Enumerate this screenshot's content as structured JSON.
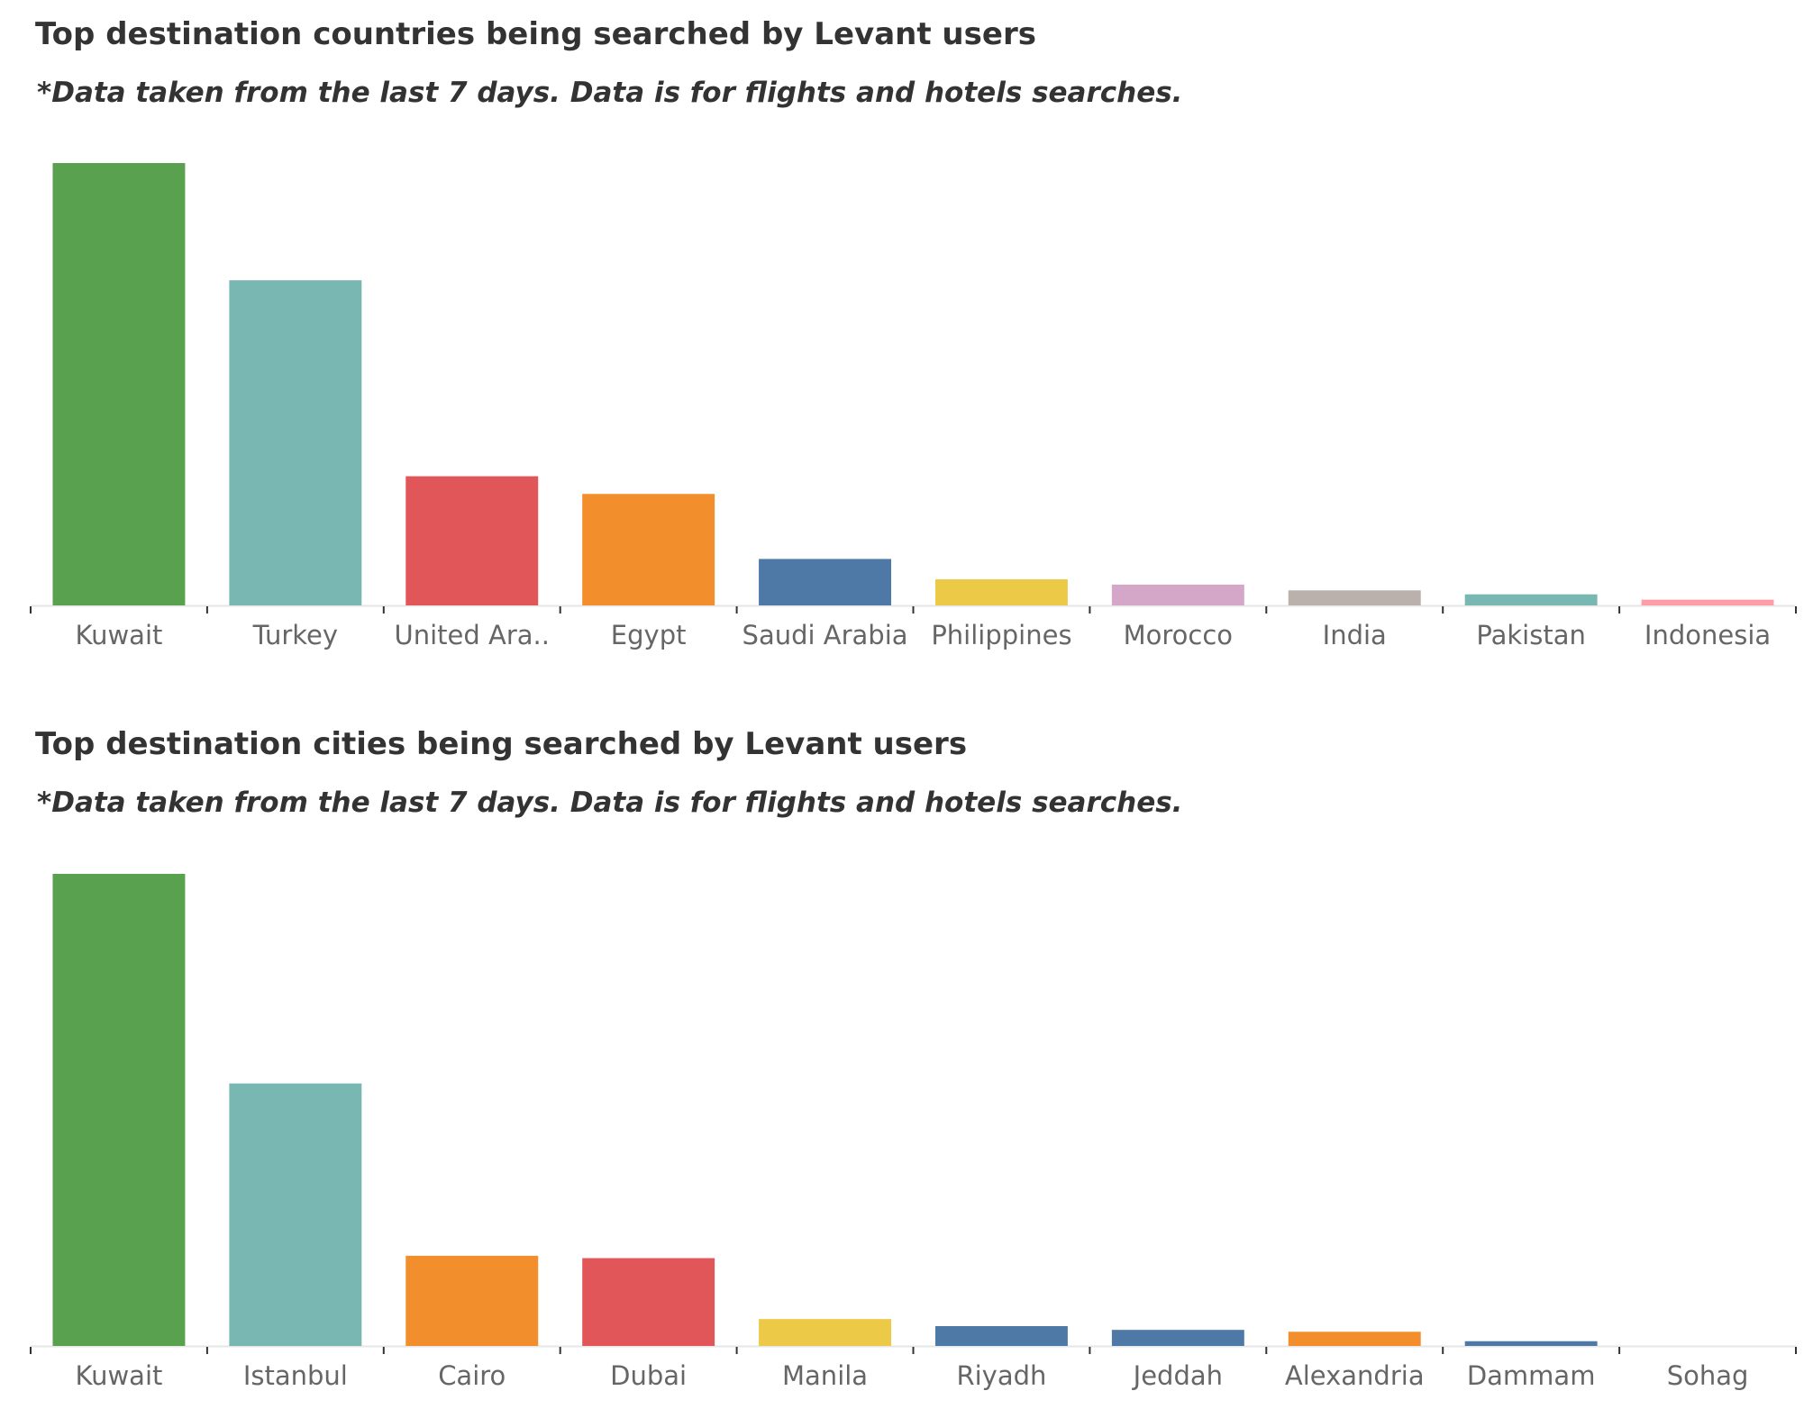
{
  "chart_data": [
    {
      "type": "bar",
      "title": "Top destination countries being searched by Levant users",
      "subtitle": "*Data taken from the last 7 days. Data is for flights and hotels searches.",
      "categories": [
        "Kuwait",
        "Turkey",
        "United Ara..",
        "Egypt",
        "Saudi Arabia",
        "Philippines",
        "Morocco",
        "India",
        "Pakistan",
        "Indonesia"
      ],
      "values": [
        100,
        73.5,
        29.2,
        25.2,
        10.5,
        5.9,
        4.7,
        3.4,
        2.5,
        1.3
      ],
      "colors": [
        "#59a14f",
        "#79b7b2",
        "#e15759",
        "#f28e2b",
        "#4e79a7",
        "#edc948",
        "#d4a6c8",
        "#bab0ac",
        "#79b7b2",
        "#ff9da7"
      ],
      "ylim": [
        0,
        100
      ],
      "grid": false,
      "xlabel": "",
      "ylabel": ""
    },
    {
      "type": "bar",
      "title": "Top destination cities being searched by Levant users",
      "subtitle": "*Data taken from the last 7 days. Data is for flights and hotels searches.",
      "categories": [
        "Kuwait",
        "Istanbul",
        "Cairo",
        "Dubai",
        "Manila",
        "Riyadh",
        "Jeddah",
        "Alexandria",
        "Dammam",
        "Sohag"
      ],
      "values": [
        100,
        55.6,
        19.1,
        18.6,
        5.7,
        4.2,
        3.4,
        3.0,
        1.0,
        0
      ],
      "colors": [
        "#59a14f",
        "#79b7b2",
        "#f28e2b",
        "#e15759",
        "#edc948",
        "#4e79a7",
        "#4e79a7",
        "#f28e2b",
        "#4e79a7",
        "#4e79a7"
      ],
      "ylim": [
        0,
        100
      ],
      "grid": false,
      "xlabel": "",
      "ylabel": ""
    }
  ]
}
